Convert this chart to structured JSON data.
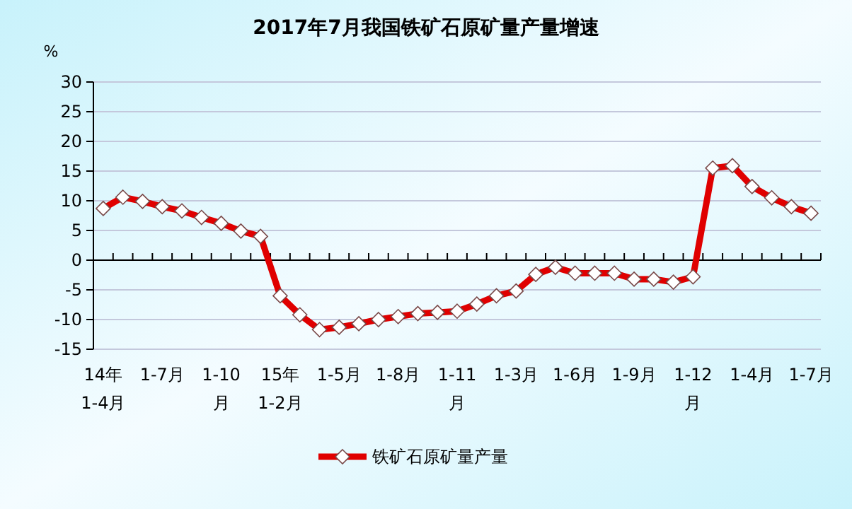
{
  "chart_data": {
    "type": "line",
    "title": "2017年7月我国铁矿石原矿量产量增速",
    "ylabel": "%",
    "categories": [
      "14年1-4月",
      null,
      null,
      "1-7月",
      null,
      null,
      "1-10月",
      null,
      null,
      "15年1-2月",
      null,
      null,
      "1-5月",
      null,
      null,
      "1-8月",
      null,
      null,
      "1-11月",
      null,
      null,
      "1-3月",
      null,
      null,
      "1-6月",
      null,
      null,
      "1-9月",
      null,
      null,
      "1-12月",
      null,
      null,
      "1-4月",
      null,
      null,
      "1-7月"
    ],
    "series": [
      {
        "name": "铁矿石原矿量产量",
        "color": "#e00000",
        "values": [
          8.7,
          10.6,
          9.9,
          9.0,
          8.3,
          7.2,
          6.2,
          4.9,
          4.0,
          -6.0,
          -9.2,
          -11.7,
          -11.3,
          -10.7,
          -10.0,
          -9.5,
          -9.0,
          -8.8,
          -8.6,
          -7.4,
          -6.0,
          -5.2,
          -2.4,
          -1.2,
          -2.2,
          -2.2,
          -2.2,
          -3.2,
          -3.2,
          -3.7,
          -2.8,
          15.5,
          15.9,
          12.4,
          10.5,
          9.0,
          7.9
        ]
      }
    ],
    "ylim": [
      -15,
      30
    ],
    "yticks": [
      -15,
      -10,
      -5,
      0,
      5,
      10,
      15,
      20,
      25,
      30
    ],
    "grid": "y",
    "legend": "bottom",
    "marker": "diamond",
    "line_style": "solid"
  }
}
